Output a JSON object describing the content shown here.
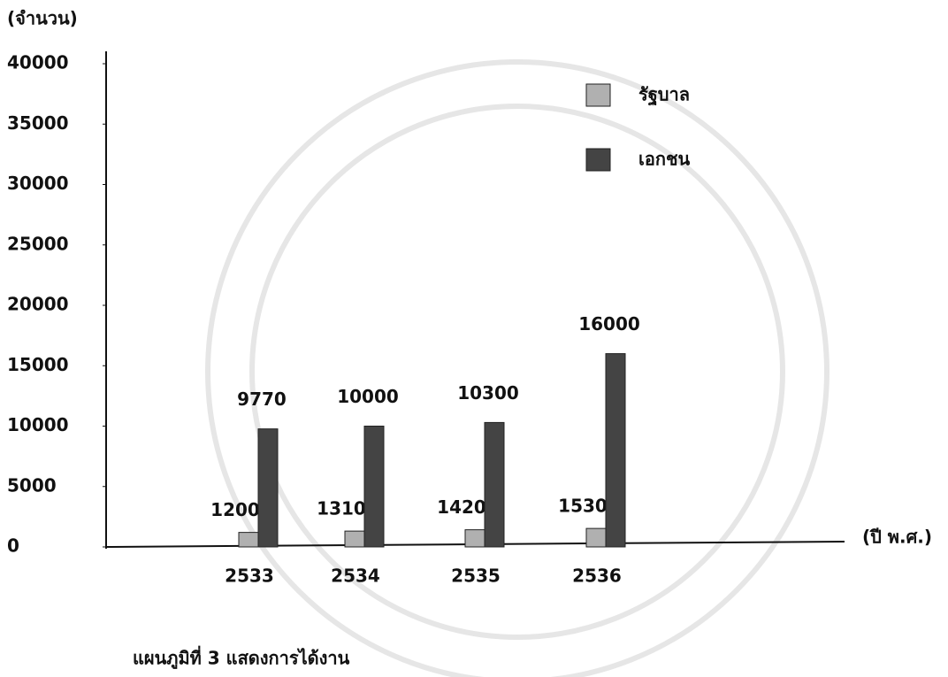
{
  "chart_data": {
    "type": "bar",
    "title": "แผนภูมิที่ 3 แสดงการได้งาน",
    "y_label": "(จำนวน)",
    "x_label": "(ปี พ.ศ.)",
    "categories": [
      "2533",
      "2534",
      "2535",
      "2536"
    ],
    "series": [
      {
        "name": "รัฐบาล",
        "color": "#b0b0b0",
        "values": [
          1200,
          1310,
          1420,
          1530
        ]
      },
      {
        "name": "เอกชน",
        "color": "#444444",
        "values": [
          9770,
          10000,
          10300,
          16000
        ]
      }
    ],
    "ylim": [
      0,
      40000
    ],
    "yticks": [
      0,
      5000,
      10000,
      15000,
      20000,
      25000,
      30000,
      35000,
      40000
    ],
    "legend": "top-right"
  }
}
